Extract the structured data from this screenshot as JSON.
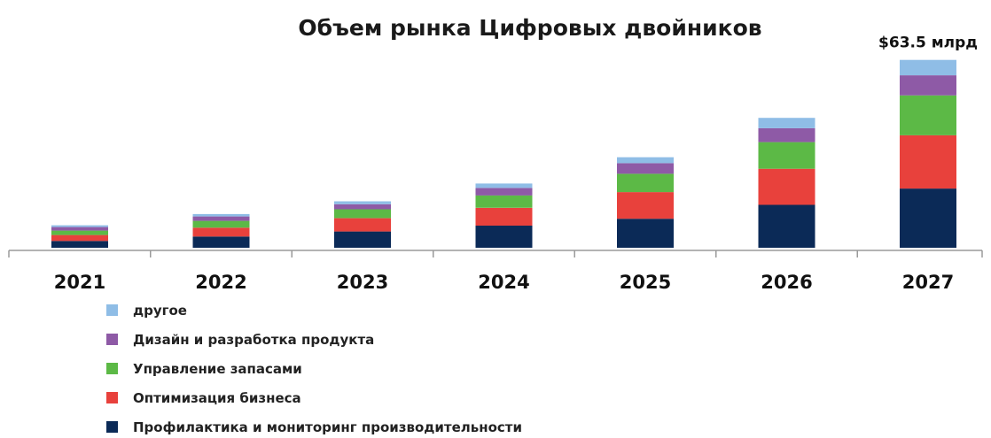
{
  "chart_data": {
    "type": "bar",
    "stacked": true,
    "title": "Объем рынка Цифровых двойников",
    "categories": [
      "2021",
      "2022",
      "2023",
      "2024",
      "2025",
      "2026",
      "2027"
    ],
    "series": [
      {
        "name": "Профилактика и мониторинг производительности",
        "color": "#0b2a57",
        "values": [
          2.3,
          3.8,
          5.5,
          7.5,
          9.8,
          14.5,
          20.0
        ]
      },
      {
        "name": "Оптимизация бизнеса",
        "color": "#e8413c",
        "values": [
          2.0,
          3.0,
          4.5,
          6.0,
          9.0,
          12.2,
          18.0
        ]
      },
      {
        "name": "Управление запасами",
        "color": "#5cb946",
        "values": [
          1.5,
          2.3,
          3.0,
          4.2,
          6.2,
          9.0,
          13.5
        ]
      },
      {
        "name": "Дизайн и разработка продукта",
        "color": "#8e5aa6",
        "values": [
          1.2,
          1.5,
          1.7,
          2.5,
          3.6,
          4.7,
          6.8
        ]
      },
      {
        "name": "другое",
        "color": "#8fbde6",
        "values": [
          0.6,
          0.8,
          1.0,
          1.5,
          2.0,
          3.5,
          5.2
        ]
      }
    ],
    "legend_order": [
      4,
      3,
      2,
      1,
      0
    ],
    "annotation": {
      "category": "2027",
      "text": "$63.5 млрд"
    },
    "ylim": [
      0,
      64
    ],
    "grid": false,
    "legend_position": "bottom-left"
  }
}
